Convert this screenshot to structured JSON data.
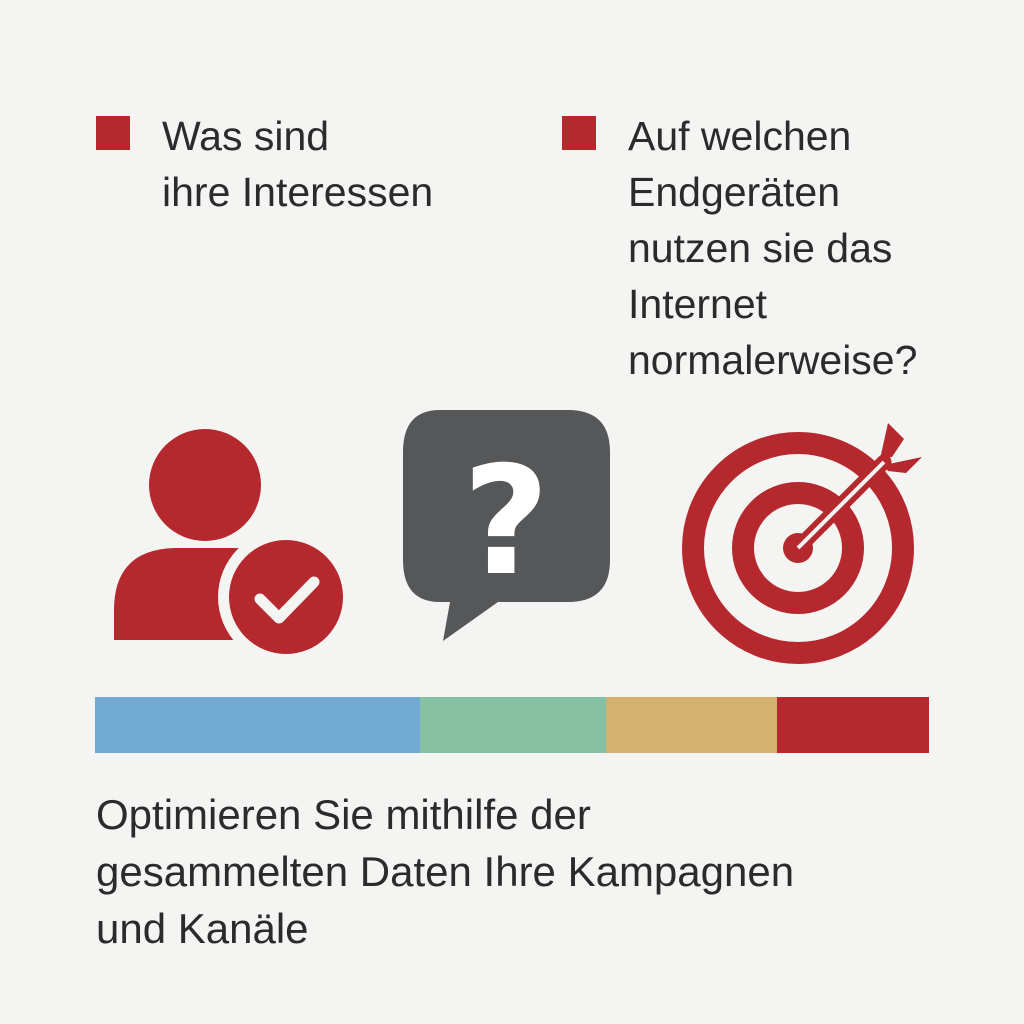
{
  "colors": {
    "accent": "#b5282e",
    "icon_gray": "#555759",
    "background": "#f4f4f3",
    "text": "#2b2b2b",
    "bar": [
      "#72a9d3",
      "#86c1a3",
      "#d4b26d",
      "#b5282e"
    ]
  },
  "bullets": [
    {
      "icon": "red-square-bullet",
      "lines": [
        "Was sind",
        "ihre Interessen"
      ]
    },
    {
      "icon": "red-square-bullet",
      "lines": [
        "Auf welchen",
        "Endgeräten",
        "nutzen sie das",
        "Internet",
        "normalerweise?"
      ]
    }
  ],
  "icons": {
    "user": "user-check-icon",
    "question": "question-bubble-icon",
    "target": "target-arrow-icon",
    "question_glyph": "?"
  },
  "footer": {
    "lines": [
      "Optimieren Sie mithilfe der",
      "gesammelten Daten Ihre Kampagnen",
      "und Kanäle"
    ]
  }
}
